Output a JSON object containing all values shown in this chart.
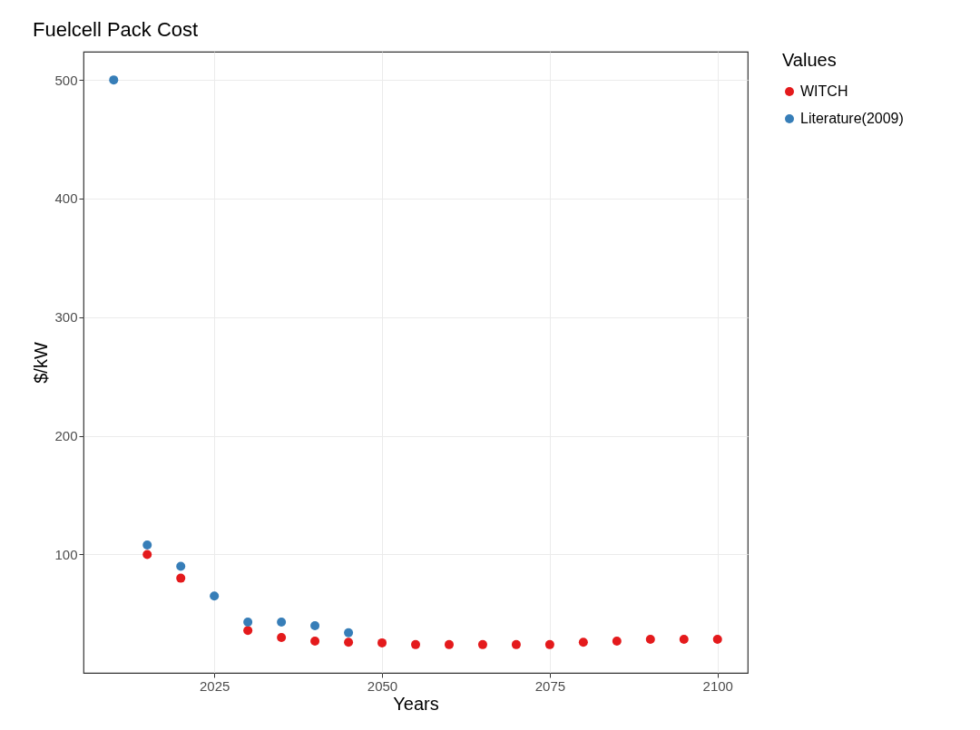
{
  "chart_data": {
    "type": "scatter",
    "title": "Fuelcell Pack Cost",
    "xlabel": "Years",
    "ylabel": "$/kW",
    "legend_title": "Values",
    "series": [
      {
        "name": "WITCH",
        "color": "#e41a1c",
        "x": [
          2015,
          2020,
          2030,
          2035,
          2040,
          2045,
          2050,
          2055,
          2060,
          2065,
          2070,
          2075,
          2080,
          2085,
          2090,
          2095,
          2100
        ],
        "values": [
          100,
          80,
          36,
          30,
          27,
          26,
          25.5,
          24,
          24,
          24,
          24,
          24,
          26,
          27,
          28.5,
          28.5,
          28.5
        ]
      },
      {
        "name": "Literature(2009)",
        "color": "#377eb8",
        "x": [
          2010,
          2015,
          2020,
          2025,
          2030,
          2035,
          2040,
          2045
        ],
        "values": [
          500,
          108,
          90,
          65,
          43,
          43,
          40,
          34
        ]
      }
    ],
    "xlim": [
      2005.5,
      2104.5
    ],
    "xticks": [
      2025,
      2050,
      2075,
      2100
    ],
    "ylim": [
      0.2,
      523.8
    ],
    "yticks": [
      100,
      200,
      300,
      400,
      500
    ],
    "grid": true,
    "legend": "right",
    "marker": "circle"
  }
}
